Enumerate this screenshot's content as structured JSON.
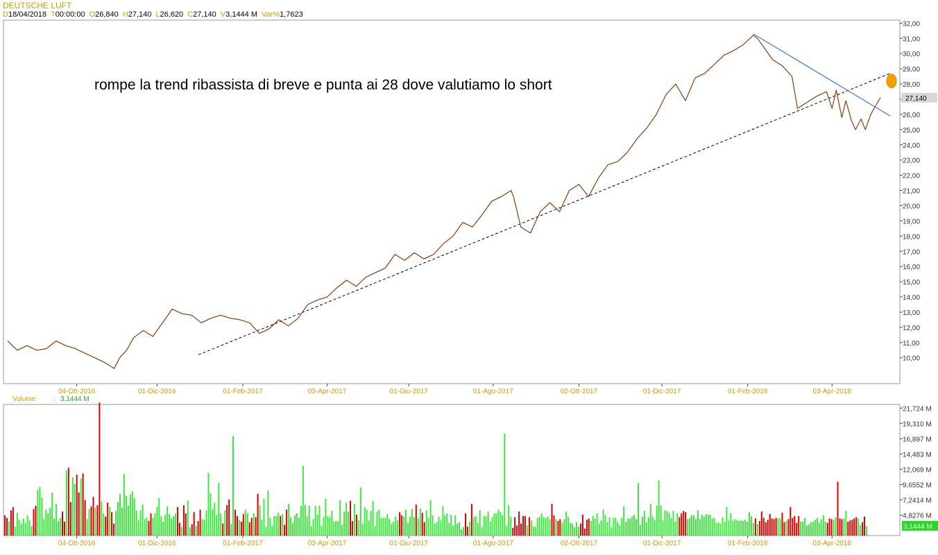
{
  "header": {
    "title": "DEUTSCHE LUFT",
    "fields": [
      {
        "key": "D",
        "value": "18/04/2018"
      },
      {
        "key": "T",
        "value": "00:00:00"
      },
      {
        "key": "O",
        "value": "26,840"
      },
      {
        "key": "H",
        "value": "27,140"
      },
      {
        "key": "L",
        "value": "26,620"
      },
      {
        "key": "C",
        "value": "27,140"
      },
      {
        "key": "V",
        "value": "3,1444 M"
      },
      {
        "key": "Var%",
        "value": "1,7623"
      }
    ]
  },
  "annotation_text": "rompe la trend ribassista di breve e punta ai 28 dove valutiamo lo short",
  "colors": {
    "price_line": "#8b3a0a",
    "trendline_down": "#3a78d8",
    "support_line": "#000000",
    "target_marker": "#f5a000",
    "vol_up": "#3ce83c",
    "vol_down": "#d80000",
    "axis_text": "#d49a00",
    "current_price_bg": "#d8d8d8",
    "current_volume_bg": "#22dd22"
  },
  "chart_data": [
    {
      "type": "line",
      "title": "DEUTSCHE LUFT",
      "x_axis_ticks": [
        "04-Ott-2016",
        "01-Dic-2016",
        "01-Feb-2017",
        "03-Apr-2017",
        "01-Giu-2017",
        "01-Ago-2017",
        "02-Ott-2017",
        "01-Dic-2017",
        "01-Feb-2018",
        "03-Apr-2018"
      ],
      "y_ticks": [
        "32,00",
        "31,00",
        "30,00",
        "29,00",
        "28,00",
        "27,00",
        "26,00",
        "25,00",
        "24,00",
        "23,00",
        "22,00",
        "21,00",
        "20,00",
        "19,00",
        "18,00",
        "17,00",
        "16,00",
        "15,00",
        "14,00",
        "13,00",
        "12,00",
        "11,00",
        "10,00"
      ],
      "ylim": [
        8.3,
        32.2
      ],
      "current_value_label": "27,140",
      "series": [
        {
          "type": "price",
          "points": [
            [
              "2016-08-15",
              11.1
            ],
            [
              "2016-08-22",
              10.5
            ],
            [
              "2016-08-29",
              10.8
            ],
            [
              "2016-09-05",
              10.5
            ],
            [
              "2016-09-12",
              10.6
            ],
            [
              "2016-09-19",
              11.1
            ],
            [
              "2016-09-26",
              10.8
            ],
            [
              "2016-10-03",
              10.6
            ],
            [
              "2016-10-10",
              10.3
            ],
            [
              "2016-10-17",
              10.0
            ],
            [
              "2016-10-24",
              9.7
            ],
            [
              "2016-10-31",
              9.3
            ],
            [
              "2016-11-04",
              10.0
            ],
            [
              "2016-11-09",
              10.5
            ],
            [
              "2016-11-14",
              11.3
            ],
            [
              "2016-11-21",
              11.8
            ],
            [
              "2016-11-28",
              11.4
            ],
            [
              "2016-12-05",
              12.3
            ],
            [
              "2016-12-12",
              13.2
            ],
            [
              "2016-12-19",
              12.9
            ],
            [
              "2016-12-26",
              12.8
            ],
            [
              "2017-01-02",
              12.3
            ],
            [
              "2017-01-09",
              12.6
            ],
            [
              "2017-01-16",
              12.8
            ],
            [
              "2017-01-23",
              12.6
            ],
            [
              "2017-01-30",
              12.5
            ],
            [
              "2017-02-06",
              12.3
            ],
            [
              "2017-02-13",
              11.6
            ],
            [
              "2017-02-20",
              11.9
            ],
            [
              "2017-02-27",
              12.5
            ],
            [
              "2017-03-06",
              12.1
            ],
            [
              "2017-03-13",
              12.6
            ],
            [
              "2017-03-20",
              13.5
            ],
            [
              "2017-03-27",
              13.8
            ],
            [
              "2017-04-03",
              14.0
            ],
            [
              "2017-04-10",
              14.6
            ],
            [
              "2017-04-17",
              15.1
            ],
            [
              "2017-04-24",
              14.7
            ],
            [
              "2017-05-01",
              15.3
            ],
            [
              "2017-05-08",
              15.6
            ],
            [
              "2017-05-15",
              15.9
            ],
            [
              "2017-05-22",
              16.8
            ],
            [
              "2017-05-29",
              16.4
            ],
            [
              "2017-06-05",
              16.9
            ],
            [
              "2017-06-12",
              16.5
            ],
            [
              "2017-06-19",
              16.8
            ],
            [
              "2017-06-26",
              17.5
            ],
            [
              "2017-07-03",
              18.0
            ],
            [
              "2017-07-10",
              18.9
            ],
            [
              "2017-07-17",
              18.6
            ],
            [
              "2017-07-24",
              19.4
            ],
            [
              "2017-07-31",
              20.3
            ],
            [
              "2017-08-07",
              20.6
            ],
            [
              "2017-08-14",
              21.0
            ],
            [
              "2017-08-16",
              20.5
            ],
            [
              "2017-08-21",
              18.6
            ],
            [
              "2017-08-28",
              18.2
            ],
            [
              "2017-09-04",
              19.6
            ],
            [
              "2017-09-11",
              20.2
            ],
            [
              "2017-09-18",
              19.6
            ],
            [
              "2017-09-25",
              21.0
            ],
            [
              "2017-10-02",
              21.4
            ],
            [
              "2017-10-09",
              20.6
            ],
            [
              "2017-10-16",
              21.8
            ],
            [
              "2017-10-23",
              22.7
            ],
            [
              "2017-10-30",
              22.9
            ],
            [
              "2017-11-06",
              23.5
            ],
            [
              "2017-11-13",
              24.4
            ],
            [
              "2017-11-20",
              25.1
            ],
            [
              "2017-11-27",
              26.0
            ],
            [
              "2017-12-04",
              27.3
            ],
            [
              "2017-12-11",
              28.0
            ],
            [
              "2017-12-18",
              26.9
            ],
            [
              "2017-12-25",
              28.4
            ],
            [
              "2018-01-01",
              28.7
            ],
            [
              "2018-01-08",
              29.3
            ],
            [
              "2018-01-15",
              29.9
            ],
            [
              "2018-01-22",
              30.2
            ],
            [
              "2018-01-29",
              30.6
            ],
            [
              "2018-02-05",
              31.2
            ],
            [
              "2018-02-08",
              31.0
            ],
            [
              "2018-02-12",
              30.5
            ],
            [
              "2018-02-19",
              29.6
            ],
            [
              "2018-02-26",
              29.2
            ],
            [
              "2018-03-05",
              28.5
            ],
            [
              "2018-03-09",
              26.4
            ],
            [
              "2018-03-16",
              26.8
            ],
            [
              "2018-03-23",
              27.2
            ],
            [
              "2018-03-30",
              27.5
            ],
            [
              "2018-04-03",
              26.4
            ],
            [
              "2018-04-06",
              27.6
            ],
            [
              "2018-04-10",
              25.8
            ],
            [
              "2018-04-13",
              26.9
            ],
            [
              "2018-04-17",
              25.6
            ],
            [
              "2018-04-20",
              25.0
            ],
            [
              "2018-04-24",
              25.7
            ],
            [
              "2018-04-27",
              25.0
            ],
            [
              "2018-05-01",
              26.0
            ],
            [
              "2018-05-04",
              26.5
            ],
            [
              "2018-05-08",
              27.1
            ]
          ]
        },
        {
          "type": "trendline_down",
          "points": [
            [
              "2018-02-05",
              31.3
            ],
            [
              "2018-05-15",
              25.9
            ]
          ]
        },
        {
          "type": "support_line",
          "points": [
            [
              "2016-12-31",
              10.2
            ],
            [
              "2018-05-15",
              28.7
            ]
          ]
        },
        {
          "type": "target_marker",
          "points": [
            [
              "2018-05-16",
              28.2
            ]
          ]
        }
      ]
    },
    {
      "type": "bar",
      "title": "Volume",
      "current_value_label": "3,1444 M",
      "y_ticks": [
        "21,724 M",
        "19,310 M",
        "16,897 M",
        "14,483 M",
        "12,069 M",
        "9,6552 M",
        "7,2414 M",
        "4,8276 M"
      ],
      "ylim": [
        1.6,
        22.3
      ],
      "values_unit": "M",
      "series": [
        {
          "values": [
            4.8,
            4.4,
            3.8,
            5.6,
            6.1,
            3.0,
            5.2,
            4.1,
            3.5,
            4.3,
            3.6,
            4.8,
            4.0,
            3.1,
            5.8,
            6.3,
            8.8,
            9.3,
            7.6,
            4.2,
            5.7,
            5.1,
            6.0,
            8.4,
            4.3,
            6.6,
            3.9,
            4.4,
            5.4,
            3.8,
            11.9,
            12.3,
            6.9,
            10.8,
            9.7,
            11.2,
            8.4,
            10.6,
            11.4,
            7.2,
            4.2,
            5.8,
            6.2,
            7.7,
            6.0,
            6.4,
            22.6,
            7.0,
            5.1,
            4.6,
            6.8,
            6.1,
            5.3,
            3.5,
            5.5,
            6.9,
            8.2,
            6.0,
            11.3,
            7.9,
            6.3,
            8.1,
            8.6,
            7.5,
            5.6,
            4.0,
            5.6,
            6.5,
            4.2,
            4.4,
            3.9,
            5.1,
            4.4,
            5.1,
            6.1,
            7.5,
            4.7,
            3.8,
            4.9,
            6.2,
            5.0,
            4.3,
            4.7,
            5.1,
            6.1,
            3.6,
            3.0,
            6.4,
            5.1,
            7.1,
            2.9,
            3.4,
            5.3,
            3.1,
            3.9,
            5.7,
            4.2,
            4.1,
            5.6,
            11.5,
            8.3,
            5.8,
            6.8,
            4.9,
            9.9,
            5.1,
            3.5,
            5.6,
            6.4,
            7.3,
            3.4,
            17.3,
            5.7,
            4.7,
            4.1,
            3.8,
            5.0,
            5.7,
            5.1,
            3.7,
            4.4,
            5.1,
            4.5,
            8.2,
            6.4,
            4.1,
            7.4,
            3.0,
            8.7,
            4.4,
            3.2,
            4.7,
            4.7,
            5.2,
            4.7,
            5.0,
            3.3,
            5.7,
            6.6,
            4.5,
            3.6,
            4.8,
            5.1,
            4.4,
            6.3,
            12.6,
            6.5,
            4.6,
            6.3,
            3.1,
            4.2,
            6.3,
            4.9,
            6.3,
            3.1,
            4.5,
            7.4,
            4.7,
            4.5,
            5.5,
            3.8,
            3.9,
            3.9,
            7.2,
            3.3,
            5.4,
            6.8,
            5.4,
            7.1,
            3.9,
            6.6,
            4.9,
            4.0,
            9.2,
            3.5,
            6.1,
            5.7,
            4.0,
            5.5,
            7.1,
            3.1,
            5.4,
            5.7,
            4.4,
            4.4,
            4.4,
            5.0,
            4.2,
            3.5,
            3.8,
            4.6,
            4.0,
            5.3,
            4.8,
            4.6,
            5.7,
            3.6,
            4.6,
            5.8,
            4.5,
            6.5,
            4.3,
            5.9,
            5.2,
            3.7,
            5.6,
            4.4,
            7.2,
            4.8,
            3.5,
            3.7,
            4.6,
            4.0,
            6.2,
            4.8,
            5.1,
            3.6,
            4.9,
            3.1,
            4.8,
            3.5,
            3.7,
            2.6,
            2.9,
            5.1,
            3.0,
            3.8,
            6.6,
            4.5,
            4.7,
            3.6,
            5.6,
            2.9,
            4.7,
            4.6,
            5.4,
            3.8,
            4.5,
            5.1,
            5.1,
            5.7,
            5.3,
            4.8,
            17.7,
            3.2,
            6.4,
            4.6,
            2.8,
            4.5,
            3.2,
            5.4,
            3.5,
            4.7,
            4.7,
            3.2,
            4.5,
            4.0,
            3.0,
            3.0,
            4.4,
            4.6,
            5.1,
            4.5,
            4.4,
            4.6,
            4.2,
            6.6,
            4.8,
            4.2,
            3.9,
            4.2,
            3.6,
            4.2,
            5.4,
            4.5,
            3.6,
            3.5,
            2.9,
            3.7,
            3.0,
            3.5,
            4.9,
            2.7,
            4.1,
            4.3,
            3.9,
            4.7,
            4.3,
            5.1,
            3.5,
            4.0,
            5.7,
            4.8,
            3.7,
            4.5,
            2.9,
            4.4,
            4.4,
            3.7,
            3.2,
            4.4,
            6.2,
            3.8,
            4.3,
            4.3,
            4.6,
            4.9,
            4.2,
            9.9,
            3.3,
            4.6,
            5.5,
            3.7,
            4.5,
            6.6,
            4.6,
            4.1,
            6.3,
            10.3,
            6.3,
            4.0,
            5.6,
            5.5,
            5.2,
            4.4,
            5.5,
            3.8,
            5.1,
            4.5,
            5.1,
            5.5,
            5.3,
            4.2,
            4.4,
            4.8,
            4.8,
            4.2,
            5.6,
            4.2,
            4.9,
            4.6,
            5.0,
            4.9,
            4.9,
            4.3,
            4.4,
            3.6,
            3.7,
            3.5,
            4.5,
            3.8,
            6.1,
            4.0,
            5.1,
            3.9,
            4.2,
            4.1,
            3.9,
            4.0,
            3.9,
            4.1,
            3.8,
            5.3,
            4.6,
            3.6,
            4.3,
            3.4,
            3.9,
            5.4,
            4.4,
            3.7,
            4.1,
            5.0,
            4.3,
            4.2,
            4.4,
            4.3,
            4.3,
            5.2,
            3.7,
            3.9,
            4.2,
            6.1,
            4.4,
            4.7,
            3.6,
            4.7,
            3.8,
            3.8,
            4.4,
            3.2,
            3.4,
            3.7,
            3.8,
            4.1,
            4.4,
            3.6,
            4.2,
            4.8,
            3.8,
            3.6,
            4.3,
            4.2,
            4.1,
            4.5,
            10.1,
            4.3,
            4.2,
            4.3,
            5.5,
            3.8,
            4.0,
            4.1,
            4.3,
            4.5,
            4.3,
            3.3,
            3.7,
            4.6,
            3.1
          ]
        }
      ]
    }
  ]
}
